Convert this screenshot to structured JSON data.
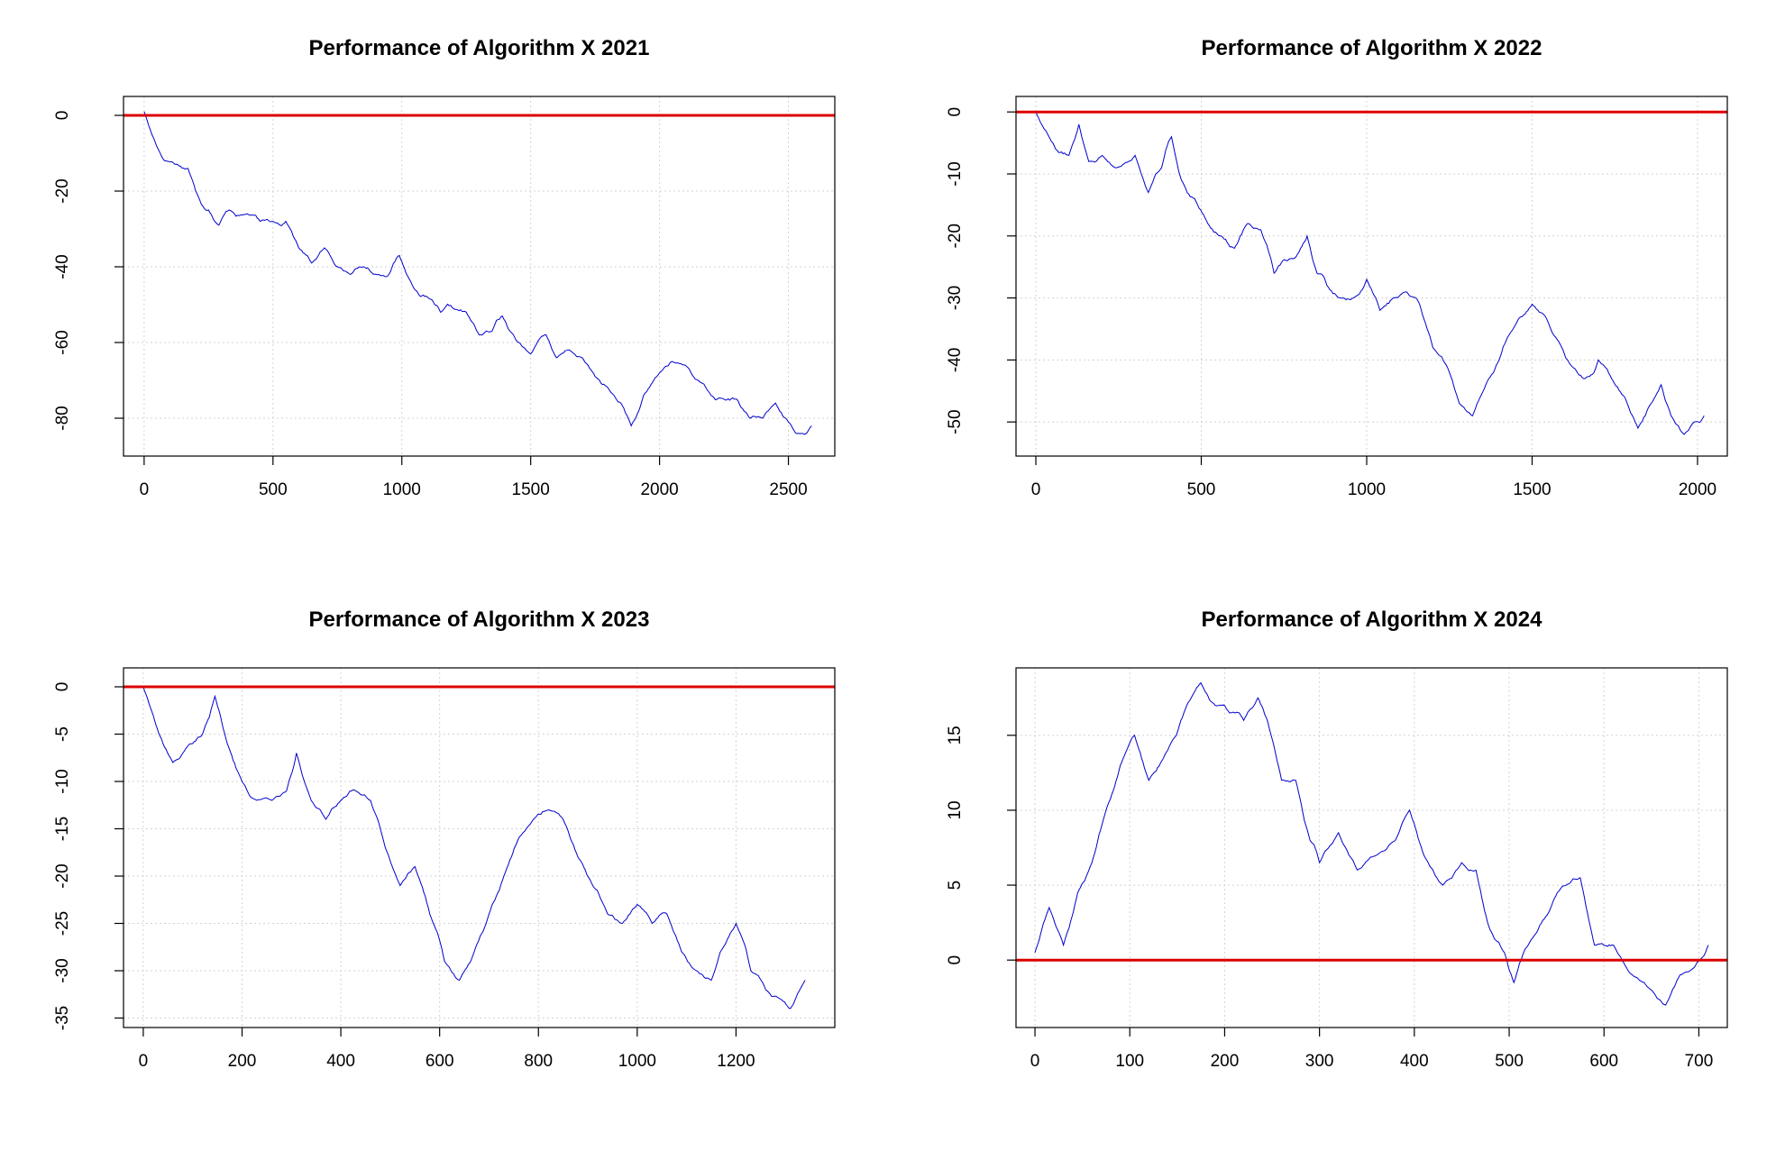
{
  "chart_data": [
    {
      "type": "line",
      "title": "Performance of Algorithm X  2021",
      "xlabel": "",
      "ylabel": "",
      "xlim": [
        -80,
        2680
      ],
      "ylim": [
        -90,
        5
      ],
      "xticks": [
        0,
        500,
        1000,
        1500,
        2000,
        2500
      ],
      "yticks": [
        0,
        -20,
        -40,
        -60,
        -80
      ],
      "grid": true,
      "reference_line": 0,
      "x_end": 2590,
      "series": [
        {
          "color": "#0000cd",
          "points": [
            [
              0,
              1
            ],
            [
              30,
              -5
            ],
            [
              80,
              -12
            ],
            [
              130,
              -13
            ],
            [
              170,
              -14
            ],
            [
              200,
              -20
            ],
            [
              250,
              -25
            ],
            [
              290,
              -29
            ],
            [
              330,
              -25
            ],
            [
              400,
              -26
            ],
            [
              450,
              -28
            ],
            [
              500,
              -28
            ],
            [
              550,
              -28
            ],
            [
              600,
              -35
            ],
            [
              650,
              -39
            ],
            [
              700,
              -35
            ],
            [
              750,
              -40
            ],
            [
              800,
              -42
            ],
            [
              850,
              -40
            ],
            [
              900,
              -42
            ],
            [
              950,
              -42
            ],
            [
              990,
              -37
            ],
            [
              1050,
              -46
            ],
            [
              1100,
              -48
            ],
            [
              1150,
              -52
            ],
            [
              1200,
              -51
            ],
            [
              1250,
              -52
            ],
            [
              1300,
              -58
            ],
            [
              1350,
              -57
            ],
            [
              1390,
              -53
            ],
            [
              1420,
              -57
            ],
            [
              1500,
              -63
            ],
            [
              1560,
              -58
            ],
            [
              1600,
              -64
            ],
            [
              1650,
              -62
            ],
            [
              1700,
              -64
            ],
            [
              1750,
              -69
            ],
            [
              1800,
              -72
            ],
            [
              1850,
              -76
            ],
            [
              1890,
              -82
            ],
            [
              1920,
              -78
            ],
            [
              1950,
              -73
            ],
            [
              2000,
              -68
            ],
            [
              2050,
              -65
            ],
            [
              2100,
              -66
            ],
            [
              2150,
              -70
            ],
            [
              2200,
              -74
            ],
            [
              2250,
              -75
            ],
            [
              2300,
              -75
            ],
            [
              2350,
              -80
            ],
            [
              2400,
              -80
            ],
            [
              2450,
              -76
            ],
            [
              2500,
              -81
            ],
            [
              2550,
              -84
            ],
            [
              2590,
              -82
            ]
          ]
        }
      ]
    },
    {
      "type": "line",
      "title": "Performance of Algorithm X  2022",
      "xlabel": "",
      "ylabel": "",
      "xlim": [
        -60,
        2090
      ],
      "ylim": [
        -55.5,
        2.5
      ],
      "xticks": [
        0,
        500,
        1000,
        1500,
        2000
      ],
      "yticks": [
        0,
        -10,
        -20,
        -30,
        -40,
        -50
      ],
      "grid": true,
      "reference_line": 0,
      "x_end": 2020,
      "series": [
        {
          "color": "#0000cd",
          "points": [
            [
              0,
              0
            ],
            [
              30,
              -3
            ],
            [
              60,
              -6
            ],
            [
              100,
              -7
            ],
            [
              130,
              -2
            ],
            [
              160,
              -8
            ],
            [
              200,
              -7
            ],
            [
              240,
              -9
            ],
            [
              280,
              -8
            ],
            [
              300,
              -7
            ],
            [
              340,
              -13
            ],
            [
              380,
              -9
            ],
            [
              410,
              -4
            ],
            [
              440,
              -11
            ],
            [
              480,
              -14
            ],
            [
              520,
              -18
            ],
            [
              560,
              -20
            ],
            [
              600,
              -22
            ],
            [
              640,
              -18
            ],
            [
              680,
              -19
            ],
            [
              720,
              -26
            ],
            [
              760,
              -24
            ],
            [
              800,
              -22
            ],
            [
              820,
              -20
            ],
            [
              850,
              -26
            ],
            [
              880,
              -28
            ],
            [
              920,
              -30
            ],
            [
              960,
              -30
            ],
            [
              1000,
              -27
            ],
            [
              1040,
              -32
            ],
            [
              1080,
              -30
            ],
            [
              1120,
              -29
            ],
            [
              1160,
              -31
            ],
            [
              1200,
              -38
            ],
            [
              1250,
              -42
            ],
            [
              1280,
              -47
            ],
            [
              1320,
              -49
            ],
            [
              1360,
              -44
            ],
            [
              1400,
              -40
            ],
            [
              1430,
              -36
            ],
            [
              1470,
              -33
            ],
            [
              1500,
              -31
            ],
            [
              1540,
              -33
            ],
            [
              1580,
              -37
            ],
            [
              1620,
              -41
            ],
            [
              1660,
              -43
            ],
            [
              1700,
              -40
            ],
            [
              1740,
              -43
            ],
            [
              1780,
              -46
            ],
            [
              1820,
              -51
            ],
            [
              1860,
              -47
            ],
            [
              1890,
              -44
            ],
            [
              1920,
              -49
            ],
            [
              1960,
              -52
            ],
            [
              1990,
              -50
            ],
            [
              2020,
              -49
            ]
          ]
        }
      ]
    },
    {
      "type": "line",
      "title": "Performance of Algorithm X  2023",
      "xlabel": "",
      "ylabel": "",
      "xlim": [
        -40,
        1400
      ],
      "ylim": [
        -36,
        2
      ],
      "xticks": [
        0,
        200,
        400,
        600,
        800,
        1000,
        1200
      ],
      "yticks": [
        0,
        -5,
        -10,
        -15,
        -20,
        -25,
        -30,
        -35
      ],
      "grid": true,
      "reference_line": 0,
      "x_end": 1340,
      "series": [
        {
          "color": "#0000cd",
          "points": [
            [
              0,
              0
            ],
            [
              20,
              -3
            ],
            [
              40,
              -6
            ],
            [
              60,
              -8
            ],
            [
              80,
              -7
            ],
            [
              100,
              -6
            ],
            [
              120,
              -5
            ],
            [
              145,
              -1
            ],
            [
              170,
              -6
            ],
            [
              200,
              -10
            ],
            [
              230,
              -12
            ],
            [
              260,
              -12
            ],
            [
              290,
              -11
            ],
            [
              310,
              -7
            ],
            [
              340,
              -12
            ],
            [
              370,
              -14
            ],
            [
              400,
              -12
            ],
            [
              430,
              -11
            ],
            [
              460,
              -12
            ],
            [
              490,
              -17
            ],
            [
              520,
              -21
            ],
            [
              550,
              -19
            ],
            [
              580,
              -24
            ],
            [
              610,
              -29
            ],
            [
              640,
              -31
            ],
            [
              670,
              -28
            ],
            [
              700,
              -24
            ],
            [
              730,
              -20
            ],
            [
              760,
              -16
            ],
            [
              790,
              -14
            ],
            [
              820,
              -13
            ],
            [
              850,
              -14
            ],
            [
              880,
              -18
            ],
            [
              910,
              -21
            ],
            [
              940,
              -24
            ],
            [
              970,
              -25
            ],
            [
              1000,
              -23
            ],
            [
              1030,
              -25
            ],
            [
              1060,
              -24
            ],
            [
              1090,
              -28
            ],
            [
              1120,
              -30
            ],
            [
              1150,
              -31
            ],
            [
              1180,
              -27
            ],
            [
              1200,
              -25
            ],
            [
              1230,
              -30
            ],
            [
              1260,
              -32
            ],
            [
              1290,
              -33
            ],
            [
              1310,
              -34
            ],
            [
              1340,
              -31
            ]
          ]
        }
      ]
    },
    {
      "type": "line",
      "title": "Performance of Algorithm X  2024",
      "xlabel": "",
      "ylabel": "",
      "xlim": [
        -20,
        730
      ],
      "ylim": [
        -4.5,
        19.5
      ],
      "xticks": [
        0,
        100,
        200,
        300,
        400,
        500,
        600,
        700
      ],
      "yticks": [
        0,
        5,
        10,
        15
      ],
      "grid": true,
      "reference_line": 0,
      "x_end": 710,
      "series": [
        {
          "color": "#0000cd",
          "points": [
            [
              0,
              0.5
            ],
            [
              15,
              3.5
            ],
            [
              30,
              1
            ],
            [
              45,
              4.5
            ],
            [
              60,
              6.5
            ],
            [
              75,
              10
            ],
            [
              90,
              13
            ],
            [
              105,
              15
            ],
            [
              120,
              12
            ],
            [
              140,
              14
            ],
            [
              160,
              17
            ],
            [
              175,
              18.5
            ],
            [
              190,
              17
            ],
            [
              205,
              16.5
            ],
            [
              220,
              16
            ],
            [
              235,
              17.5
            ],
            [
              245,
              16
            ],
            [
              260,
              12
            ],
            [
              275,
              12
            ],
            [
              290,
              8
            ],
            [
              300,
              6.5
            ],
            [
              320,
              8.5
            ],
            [
              340,
              6
            ],
            [
              360,
              7
            ],
            [
              380,
              8
            ],
            [
              395,
              10
            ],
            [
              410,
              7
            ],
            [
              430,
              5
            ],
            [
              450,
              6.5
            ],
            [
              465,
              6
            ],
            [
              480,
              2
            ],
            [
              495,
              0.5
            ],
            [
              505,
              -1.5
            ],
            [
              520,
              1
            ],
            [
              540,
              3
            ],
            [
              560,
              5
            ],
            [
              575,
              5.5
            ],
            [
              590,
              1
            ],
            [
              610,
              1
            ],
            [
              630,
              -1
            ],
            [
              650,
              -2
            ],
            [
              665,
              -3
            ],
            [
              680,
              -1
            ],
            [
              695,
              -0.5
            ],
            [
              710,
              1
            ]
          ]
        }
      ]
    }
  ]
}
